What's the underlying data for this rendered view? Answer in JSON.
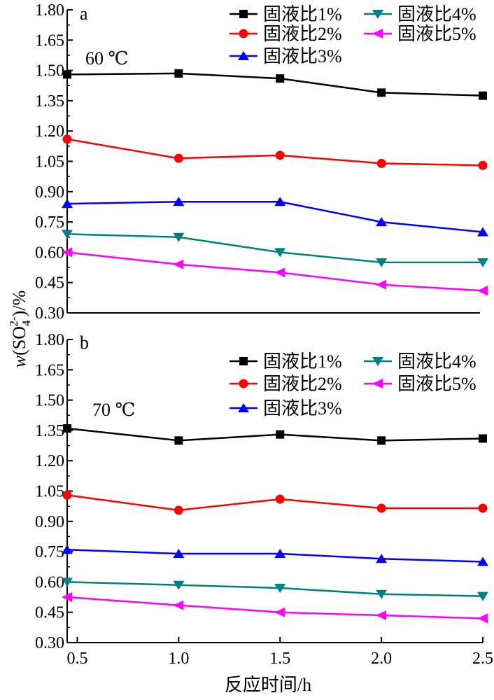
{
  "chart_data": [
    {
      "type": "line",
      "panel_label": "a",
      "annotation": "60 ℃",
      "x": [
        0.45,
        1.0,
        1.5,
        2.0,
        2.5
      ],
      "ylim": [
        0.3,
        1.8
      ],
      "yticks": [
        "1.80",
        "1.65",
        "1.50",
        "1.35",
        "1.20",
        "1.05",
        "0.90",
        "0.75",
        "0.60",
        "0.45",
        "0.30"
      ],
      "legend_position": "top-right",
      "series": [
        {
          "name": "固液比1%",
          "color": "#000000",
          "marker": "square",
          "values": [
            1.48,
            1.485,
            1.46,
            1.39,
            1.375
          ]
        },
        {
          "name": "固液比2%",
          "color": "#ff0000",
          "marker": "circle",
          "values": [
            1.16,
            1.065,
            1.08,
            1.04,
            1.03
          ]
        },
        {
          "name": "固液比3%",
          "color": "#0000ff",
          "marker": "triangle-up",
          "values": [
            0.84,
            0.85,
            0.85,
            0.75,
            0.7
          ]
        },
        {
          "name": "固液比4%",
          "color": "#008080",
          "marker": "triangle-down",
          "values": [
            0.69,
            0.675,
            0.6,
            0.55,
            0.55
          ]
        },
        {
          "name": "固液比5%",
          "color": "#ff00ff",
          "marker": "triangle-left",
          "values": [
            0.6,
            0.54,
            0.5,
            0.44,
            0.41
          ]
        }
      ]
    },
    {
      "type": "line",
      "panel_label": "b",
      "annotation": "70 ℃",
      "x": [
        0.45,
        1.0,
        1.5,
        2.0,
        2.5
      ],
      "ylim": [
        0.3,
        1.8
      ],
      "yticks": [
        "1.80",
        "1.65",
        "1.50",
        "1.35",
        "1.20",
        "1.05",
        "0.90",
        "0.75",
        "0.60",
        "0.45",
        "0.30"
      ],
      "xticks": [
        "0.5",
        "1.0",
        "1.5",
        "2.0",
        "2.5"
      ],
      "xlim": [
        0.45,
        2.5
      ],
      "xlabel": "反应时间/h",
      "legend_position": "top-right",
      "series": [
        {
          "name": "固液比1%",
          "color": "#000000",
          "marker": "square",
          "values": [
            1.36,
            1.3,
            1.33,
            1.3,
            1.31
          ]
        },
        {
          "name": "固液比2%",
          "color": "#ff0000",
          "marker": "circle",
          "values": [
            1.03,
            0.955,
            1.01,
            0.965,
            0.965
          ]
        },
        {
          "name": "固液比3%",
          "color": "#0000ff",
          "marker": "triangle-up",
          "values": [
            0.76,
            0.74,
            0.74,
            0.715,
            0.7
          ]
        },
        {
          "name": "固液比4%",
          "color": "#008080",
          "marker": "triangle-down",
          "values": [
            0.6,
            0.585,
            0.57,
            0.54,
            0.53
          ]
        },
        {
          "name": "固液比5%",
          "color": "#ff00ff",
          "marker": "triangle-left",
          "values": [
            0.525,
            0.485,
            0.45,
            0.435,
            0.42
          ]
        }
      ]
    }
  ],
  "ylabel": {
    "prefix": "w",
    "open": "(SO",
    "sub": "4",
    "sup": "2-",
    "close": ")/%"
  }
}
